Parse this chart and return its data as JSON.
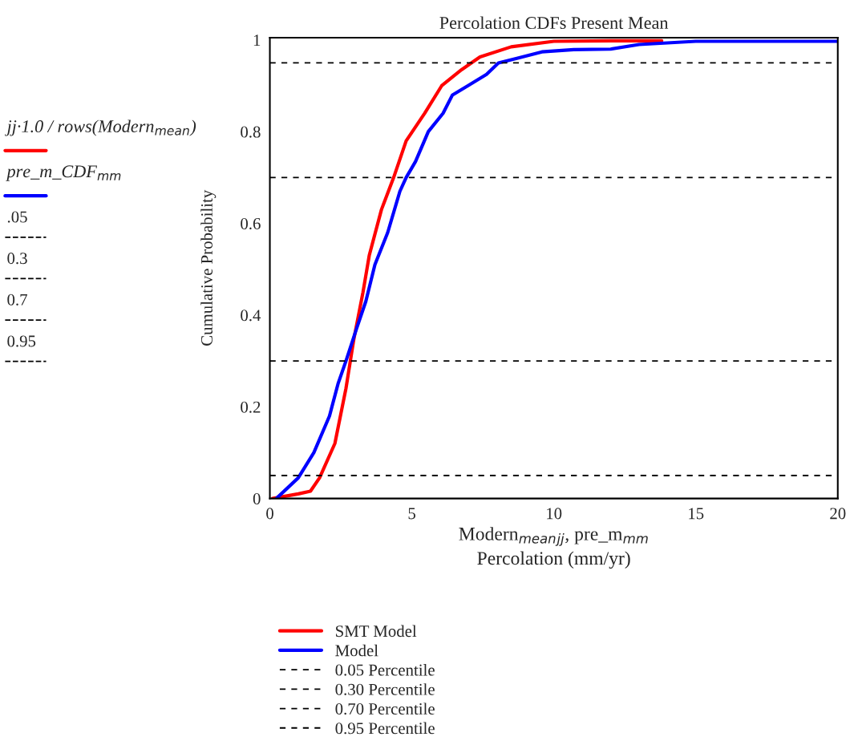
{
  "chart_data": {
    "type": "line",
    "title": "Percolation CDFs Present Mean",
    "xlabel": "Modern$_{mean}$$_{jj}$, pre_m$_{mm}$\nPercolation (mm/yr)",
    "ylabel": "Cumulative Probability",
    "xlim": [
      0,
      20
    ],
    "xticks": [
      0,
      5,
      10,
      15,
      20
    ],
    "ylim": [
      0,
      1.005
    ],
    "yticks": [
      0,
      0.2,
      0.4,
      0.6,
      0.8,
      1
    ],
    "grid": false,
    "legend": "bottom",
    "line_style": "solid",
    "marker": "none",
    "series": [
      {
        "name": "SMT Model",
        "color": "#ff0000",
        "x": [
          0.1,
          1.0,
          1.43,
          1.75,
          2.29,
          2.68,
          2.95,
          3.28,
          3.5,
          3.93,
          4.36,
          4.8,
          5.45,
          6.05,
          6.75,
          7.4,
          8.5,
          10.0,
          12.0,
          13.8
        ],
        "values": [
          0,
          0.01,
          0.016,
          0.045,
          0.12,
          0.24,
          0.345,
          0.45,
          0.53,
          0.63,
          0.7,
          0.78,
          0.84,
          0.9,
          0.935,
          0.963,
          0.985,
          0.997,
          0.998,
          0.998
        ]
      },
      {
        "name": "Model",
        "color": "#0000ff",
        "x": [
          0.23,
          1.0,
          1.55,
          2.1,
          2.4,
          2.68,
          3.05,
          3.38,
          3.7,
          4.15,
          4.58,
          4.8,
          5.13,
          5.58,
          6.1,
          6.43,
          6.97,
          7.63,
          8.05,
          8.7,
          9.58,
          10.7,
          12.0,
          13.0,
          15.0,
          20.0
        ],
        "values": [
          0,
          0.045,
          0.1,
          0.18,
          0.25,
          0.3,
          0.37,
          0.43,
          0.51,
          0.58,
          0.67,
          0.7,
          0.735,
          0.8,
          0.84,
          0.88,
          0.9,
          0.925,
          0.95,
          0.96,
          0.974,
          0.979,
          0.98,
          0.99,
          0.997,
          0.997
        ]
      }
    ],
    "ref_lines": [
      {
        "axis": "y",
        "value": 0.05,
        "label": "0.05 Percentile",
        "color": "#000000",
        "line_style": "dashed"
      },
      {
        "axis": "y",
        "value": 0.3,
        "label": "0.30 Percentile",
        "color": "#000000",
        "line_style": "dashed"
      },
      {
        "axis": "y",
        "value": 0.7,
        "label": "0.70 Percentile",
        "color": "#000000",
        "line_style": "dashed"
      },
      {
        "axis": "y",
        "value": 0.95,
        "label": "0.95 Percentile",
        "color": "#000000",
        "line_style": "dashed"
      }
    ],
    "annotations": [
      "jj·1.0 / rows(Modern$_{mean}$)",
      "pre_m_CDF$_{mm}$",
      ".05",
      "0.3",
      "0.7",
      "0.95"
    ]
  }
}
